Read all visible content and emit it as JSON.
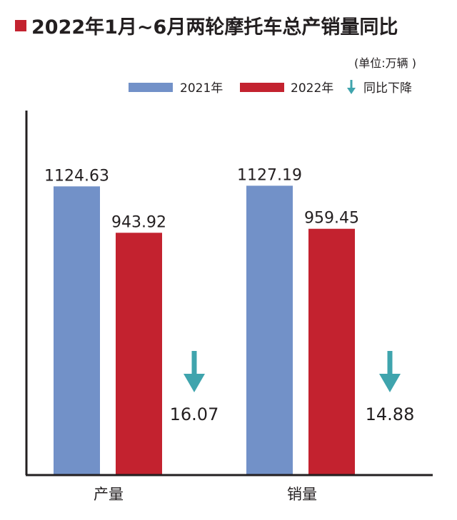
{
  "chart_data": {
    "type": "bar",
    "title": "2022年1月~6月两轮摩托车总产销量同比",
    "unit": "(单位:万辆 )",
    "categories": [
      "产量",
      "销量"
    ],
    "series": [
      {
        "name": "2021年",
        "color": "#7291c8",
        "values": [
          1124.63,
          1127.19
        ]
      },
      {
        "name": "2022年",
        "color": "#c3222f",
        "values": [
          943.92,
          959.45
        ]
      }
    ],
    "decline": {
      "legend_label": "同比下降",
      "color": "#3fa4ad",
      "icon": "down-arrow-icon",
      "values": [
        "16.07",
        "14.88"
      ]
    },
    "ylim": [
      0,
      1420
    ],
    "grid": false,
    "legend_position": "top-right",
    "title_marker_color": "#c3222f",
    "axis_color": "#231f20"
  }
}
